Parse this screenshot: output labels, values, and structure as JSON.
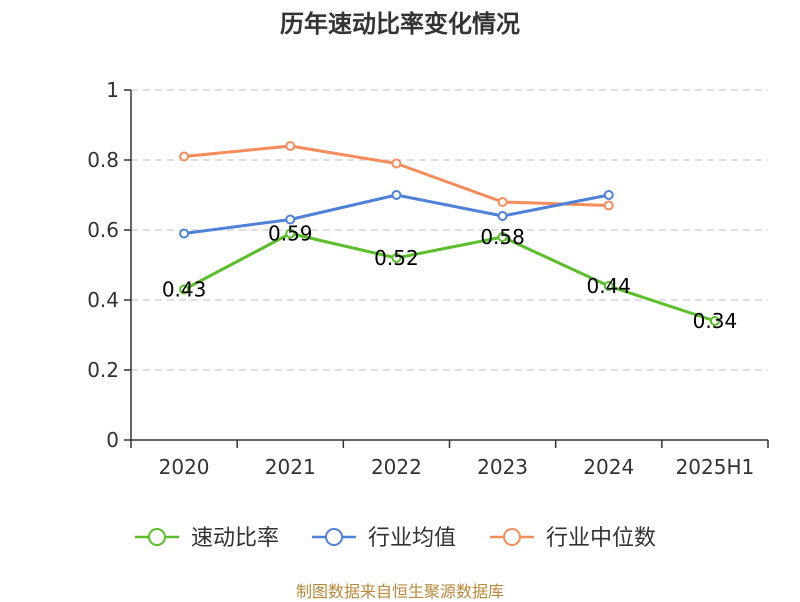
{
  "chart_data": {
    "type": "line",
    "title": "历年速动比率变化情况",
    "categories": [
      "2020",
      "2021",
      "2022",
      "2023",
      "2024",
      "2025H1"
    ],
    "ylim": [
      0,
      1
    ],
    "yticks": [
      "0",
      "0.2",
      "0.4",
      "0.6",
      "0.8",
      "1"
    ],
    "grid": true,
    "legend_position": "bottom",
    "series": [
      {
        "name": "速动比率",
        "color": "#5bbf2a",
        "values": [
          0.43,
          0.59,
          0.52,
          0.58,
          0.44,
          0.34
        ],
        "labels": [
          "0.43",
          "0.59",
          "0.52",
          "0.58",
          "0.44",
          "0.34"
        ]
      },
      {
        "name": "行业均值",
        "color": "#4f81d9",
        "values": [
          0.59,
          0.63,
          0.7,
          0.64,
          0.7,
          null
        ]
      },
      {
        "name": "行业中位数",
        "color": "#f78c5a",
        "values": [
          0.81,
          0.84,
          0.79,
          0.68,
          0.67,
          null
        ]
      }
    ]
  },
  "source": "制图数据来自恒生聚源数据库"
}
